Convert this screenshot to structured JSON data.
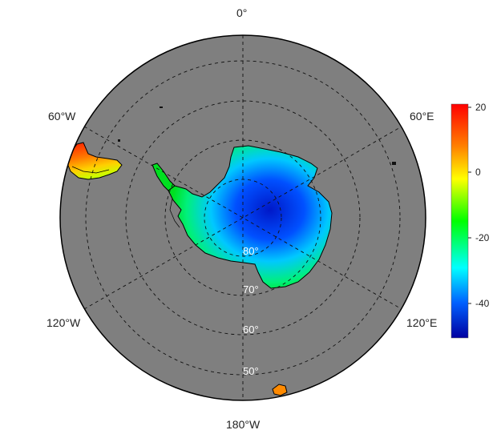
{
  "map": {
    "projection": "south-polar-stereographic",
    "background_color": "#7f7f7f",
    "land_color_scale": "jet",
    "longitude_labels": {
      "top": "0°",
      "left_upper": "60°W",
      "right_upper": "60°E",
      "left_lower": "120°W",
      "right_lower": "120°E",
      "bottom": "180°W"
    },
    "latitude_labels": [
      "80°",
      "70°",
      "60°",
      "50°"
    ]
  },
  "colorbar": {
    "ticks": [
      "20",
      "0",
      "-20",
      "-40"
    ],
    "range": [
      -52,
      22
    ],
    "colors": [
      "#ff0000",
      "#ff8000",
      "#ffff00",
      "#00ff00",
      "#00ffff",
      "#0060ff",
      "#0000a0"
    ]
  }
}
